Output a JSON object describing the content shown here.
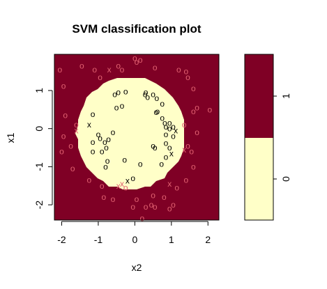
{
  "chart_data": {
    "type": "scatter",
    "title": "SVM classification plot",
    "xlabel": "x2",
    "ylabel": "x1",
    "xlim": [
      -2.2,
      2.3
    ],
    "ylim": [
      -2.4,
      1.95
    ],
    "xticks": [
      "-2",
      "-1",
      "0",
      "1",
      "2"
    ],
    "yticks": [
      "-2",
      "-1",
      "0",
      "1"
    ],
    "regions": {
      "class_0_shape": "disc",
      "center": [
        -0.12,
        -0.12
      ],
      "radius": 1.48,
      "class_0_color": "#FFFFC8",
      "class_1_color": "#7F0025"
    },
    "legend": {
      "labels": [
        "0",
        "1"
      ],
      "colors": [
        "#FFFFC8",
        "#7F0025"
      ],
      "placement": "right"
    },
    "series": [
      {
        "class": "0",
        "color": "#000000",
        "points": [
          {
            "x": -0.45,
            "y": 0.95,
            "m": "o"
          },
          {
            "x": -0.55,
            "y": 0.9,
            "m": "o"
          },
          {
            "x": -0.25,
            "y": 0.97,
            "m": "o"
          },
          {
            "x": 0.28,
            "y": 0.9,
            "m": "o"
          },
          {
            "x": 0.3,
            "y": 0.95,
            "m": "o"
          },
          {
            "x": 0.5,
            "y": 0.9,
            "m": "o"
          },
          {
            "x": 0.35,
            "y": 0.83,
            "m": "o"
          },
          {
            "x": 0.75,
            "y": 0.65,
            "m": "o"
          },
          {
            "x": 0.6,
            "y": 0.8,
            "m": "o"
          },
          {
            "x": -0.35,
            "y": 0.6,
            "m": "o"
          },
          {
            "x": -0.5,
            "y": 0.55,
            "m": "o"
          },
          {
            "x": 0.62,
            "y": 0.45,
            "m": "o"
          },
          {
            "x": 0.58,
            "y": 0.43,
            "m": "o"
          },
          {
            "x": 0.75,
            "y": 0.28,
            "m": "o"
          },
          {
            "x": 0.82,
            "y": 0.15,
            "m": "o"
          },
          {
            "x": 0.95,
            "y": 0.15,
            "m": "o"
          },
          {
            "x": 0.85,
            "y": 0.05,
            "m": "o"
          },
          {
            "x": 0.95,
            "y": 0.0,
            "m": "o"
          },
          {
            "x": 1.05,
            "y": 0.05,
            "m": "o"
          },
          {
            "x": 0.85,
            "y": -0.15,
            "m": "o"
          },
          {
            "x": 1.05,
            "y": -0.2,
            "m": "o"
          },
          {
            "x": 0.5,
            "y": -0.45,
            "m": "o"
          },
          {
            "x": 0.55,
            "y": -0.5,
            "m": "o"
          },
          {
            "x": 0.85,
            "y": -0.38,
            "m": "o"
          },
          {
            "x": 0.95,
            "y": -0.5,
            "m": "o"
          },
          {
            "x": 0.85,
            "y": -0.75,
            "m": "o"
          },
          {
            "x": 0.73,
            "y": -0.93,
            "m": "o"
          },
          {
            "x": 0.15,
            "y": -0.93,
            "m": "o"
          },
          {
            "x": -1.15,
            "y": 0.38,
            "m": "o"
          },
          {
            "x": -1.0,
            "y": -0.15,
            "m": "o"
          },
          {
            "x": -0.95,
            "y": -0.25,
            "m": "o"
          },
          {
            "x": -0.6,
            "y": -0.1,
            "m": "o"
          },
          {
            "x": -0.72,
            "y": -0.28,
            "m": "o"
          },
          {
            "x": -0.82,
            "y": -0.35,
            "m": "o"
          },
          {
            "x": -0.78,
            "y": -0.5,
            "m": "o"
          },
          {
            "x": -1.15,
            "y": -0.35,
            "m": "o"
          },
          {
            "x": -1.15,
            "y": -0.6,
            "m": "o"
          },
          {
            "x": -0.9,
            "y": -0.6,
            "m": "o"
          },
          {
            "x": -0.75,
            "y": -0.85,
            "m": "o"
          },
          {
            "x": -0.8,
            "y": -1.0,
            "m": "o"
          },
          {
            "x": -0.28,
            "y": -0.82,
            "m": "o"
          },
          {
            "x": -0.05,
            "y": -1.3,
            "m": "o"
          },
          {
            "x": -1.25,
            "y": 0.1,
            "m": "x"
          },
          {
            "x": 1.12,
            "y": -0.05,
            "m": "x"
          },
          {
            "x": 1.0,
            "y": -0.65,
            "m": "x"
          },
          {
            "x": -0.2,
            "y": -1.37,
            "m": "x"
          }
        ]
      },
      {
        "class": "1",
        "color": "#E06070",
        "points": [
          {
            "x": -2.05,
            "y": 1.55,
            "m": "o"
          },
          {
            "x": -1.95,
            "y": 1.12,
            "m": "o"
          },
          {
            "x": -1.9,
            "y": 0.35,
            "m": "o"
          },
          {
            "x": -1.75,
            "y": -0.45,
            "m": "o"
          },
          {
            "x": -2.0,
            "y": -0.6,
            "m": "o"
          },
          {
            "x": -1.7,
            "y": -1.05,
            "m": "o"
          },
          {
            "x": -1.6,
            "y": -0.05,
            "m": "x"
          },
          {
            "x": -1.95,
            "y": -0.2,
            "m": "o"
          },
          {
            "x": -1.6,
            "y": 0.1,
            "m": "o"
          },
          {
            "x": -1.45,
            "y": 1.65,
            "m": "o"
          },
          {
            "x": -1.1,
            "y": 1.55,
            "m": "o"
          },
          {
            "x": -0.95,
            "y": 1.35,
            "m": "o"
          },
          {
            "x": -0.7,
            "y": 1.55,
            "m": "x"
          },
          {
            "x": -0.45,
            "y": 1.65,
            "m": "o"
          },
          {
            "x": -0.35,
            "y": 1.55,
            "m": "o"
          },
          {
            "x": 0.0,
            "y": 1.85,
            "m": "o"
          },
          {
            "x": 0.05,
            "y": 1.75,
            "m": "o"
          },
          {
            "x": 0.15,
            "y": 1.8,
            "m": "o"
          },
          {
            "x": 0.55,
            "y": 1.6,
            "m": "o"
          },
          {
            "x": 1.2,
            "y": 1.55,
            "m": "o"
          },
          {
            "x": 1.4,
            "y": 1.5,
            "m": "o"
          },
          {
            "x": 1.45,
            "y": 1.35,
            "m": "o"
          },
          {
            "x": 1.6,
            "y": 1.05,
            "m": "o"
          },
          {
            "x": 1.7,
            "y": 0.55,
            "m": "o"
          },
          {
            "x": 1.6,
            "y": 0.45,
            "m": "o"
          },
          {
            "x": 2.05,
            "y": 0.5,
            "m": "o"
          },
          {
            "x": 1.35,
            "y": 0.1,
            "m": "o"
          },
          {
            "x": 1.7,
            "y": -0.1,
            "m": "o"
          },
          {
            "x": 1.45,
            "y": -0.45,
            "m": "o"
          },
          {
            "x": 1.35,
            "y": -0.55,
            "m": "x"
          },
          {
            "x": 1.55,
            "y": -0.6,
            "m": "o"
          },
          {
            "x": 1.6,
            "y": -1.0,
            "m": "o"
          },
          {
            "x": 1.4,
            "y": -1.35,
            "m": "o"
          },
          {
            "x": 0.95,
            "y": -1.45,
            "m": "x"
          },
          {
            "x": 1.15,
            "y": -1.55,
            "m": "o"
          },
          {
            "x": -1.25,
            "y": -1.35,
            "m": "o"
          },
          {
            "x": -0.9,
            "y": -1.5,
            "m": "o"
          },
          {
            "x": -0.45,
            "y": -1.5,
            "m": "x"
          },
          {
            "x": -0.25,
            "y": -1.55,
            "m": "o"
          },
          {
            "x": -0.35,
            "y": -1.45,
            "m": "x"
          },
          {
            "x": -0.85,
            "y": -1.8,
            "m": "o"
          },
          {
            "x": -0.6,
            "y": -1.85,
            "m": "o"
          },
          {
            "x": 0.05,
            "y": -1.85,
            "m": "o"
          },
          {
            "x": 0.5,
            "y": -1.75,
            "m": "o"
          },
          {
            "x": 0.8,
            "y": -1.8,
            "m": "o"
          },
          {
            "x": 1.05,
            "y": -2.0,
            "m": "o"
          },
          {
            "x": 0.55,
            "y": -2.05,
            "m": "o"
          },
          {
            "x": 0.3,
            "y": -2.05,
            "m": "o"
          },
          {
            "x": 0.45,
            "y": -2.0,
            "m": "o"
          },
          {
            "x": -0.05,
            "y": -2.05,
            "m": "o"
          },
          {
            "x": 0.95,
            "y": -2.1,
            "m": "o"
          },
          {
            "x": 0.2,
            "y": -2.35,
            "m": "o"
          }
        ]
      }
    ]
  }
}
